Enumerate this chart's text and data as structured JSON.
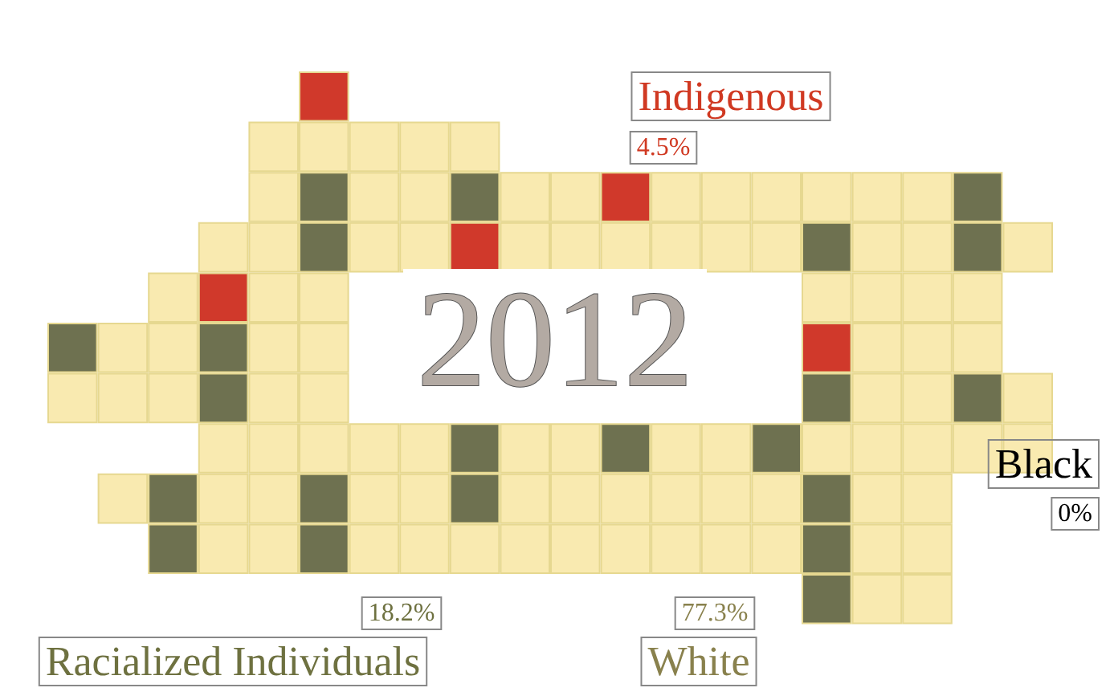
{
  "chart_data": {
    "type": "other",
    "title": "2012",
    "categories": [
      "Indigenous",
      "Black",
      "Racialized Individuals",
      "White"
    ],
    "values": [
      4.5,
      0,
      18.2,
      77.3
    ],
    "value_labels": [
      "4.5%",
      "0%",
      "18.2%",
      "77.3%"
    ],
    "colors": [
      "#d0392b",
      "#000000",
      "#6e7150",
      "#f9eab0"
    ]
  }
}
